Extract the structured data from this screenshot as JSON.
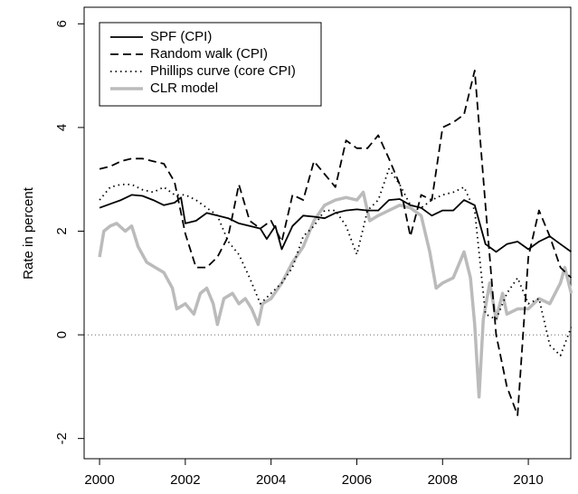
{
  "chart_data": {
    "type": "line",
    "ylabel": "Rate in percent",
    "xlim": [
      1999.64,
      2010.99
    ],
    "ylim": [
      -2.39,
      6.32
    ],
    "xticks": [
      2000,
      2002,
      2004,
      2006,
      2008,
      2010
    ],
    "yticks": [
      -2,
      0,
      2,
      4,
      6
    ],
    "reference_line": 0,
    "legend": "top-left",
    "series": [
      {
        "name": "SPF (CPI)",
        "color": "#000000",
        "style": "solid",
        "linewidth": 1.8,
        "x": [
          2000.0,
          2000.5,
          2000.75,
          2001.0,
          2001.25,
          2001.5,
          2001.75,
          2001.9,
          2002.0,
          2002.25,
          2002.5,
          2002.75,
          2003.0,
          2003.25,
          2003.5,
          2003.75,
          2003.9,
          2004.1,
          2004.25,
          2004.5,
          2004.75,
          2005.0,
          2005.25,
          2005.5,
          2005.75,
          2006.0,
          2006.25,
          2006.5,
          2006.75,
          2007.0,
          2007.25,
          2007.5,
          2007.75,
          2008.0,
          2008.25,
          2008.5,
          2008.75,
          2009.0,
          2009.25,
          2009.5,
          2009.75,
          2010.0,
          2010.25,
          2010.5,
          2010.75,
          2011.0
        ],
        "values": [
          2.45,
          2.6,
          2.7,
          2.68,
          2.6,
          2.5,
          2.55,
          2.65,
          2.15,
          2.2,
          2.35,
          2.3,
          2.25,
          2.15,
          2.1,
          2.05,
          1.85,
          2.1,
          1.65,
          2.1,
          2.3,
          2.28,
          2.25,
          2.35,
          2.4,
          2.42,
          2.4,
          2.4,
          2.6,
          2.62,
          2.5,
          2.45,
          2.3,
          2.4,
          2.4,
          2.6,
          2.5,
          1.75,
          1.6,
          1.75,
          1.8,
          1.65,
          1.8,
          1.9,
          1.75,
          1.6
        ]
      },
      {
        "name": "Random walk (CPI)",
        "color": "#000000",
        "style": "dashed",
        "linewidth": 1.8,
        "x": [
          2000.0,
          2000.25,
          2000.5,
          2000.75,
          2001.0,
          2001.25,
          2001.5,
          2001.75,
          2002.0,
          2002.25,
          2002.5,
          2002.75,
          2003.0,
          2003.25,
          2003.5,
          2003.75,
          2004.0,
          2004.25,
          2004.5,
          2004.75,
          2005.0,
          2005.25,
          2005.5,
          2005.75,
          2006.0,
          2006.25,
          2006.5,
          2006.75,
          2007.0,
          2007.25,
          2007.5,
          2007.75,
          2008.0,
          2008.25,
          2008.5,
          2008.75,
          2009.0,
          2009.25,
          2009.5,
          2009.75,
          2010.0,
          2010.25,
          2010.5,
          2010.75,
          2011.0
        ],
        "values": [
          3.2,
          3.25,
          3.35,
          3.4,
          3.4,
          3.35,
          3.3,
          2.95,
          1.95,
          1.3,
          1.3,
          1.5,
          1.9,
          2.9,
          2.2,
          2.05,
          2.2,
          1.8,
          2.7,
          2.6,
          3.35,
          3.1,
          2.85,
          3.75,
          3.6,
          3.6,
          3.85,
          3.4,
          2.9,
          1.9,
          2.7,
          2.6,
          4.0,
          4.1,
          4.25,
          5.1,
          2.5,
          0.0,
          -1.0,
          -1.55,
          1.5,
          2.4,
          1.9,
          1.3,
          1.1
        ]
      },
      {
        "name": "Phillips curve (core CPI)",
        "color": "#000000",
        "style": "dotted",
        "linewidth": 1.8,
        "x": [
          2000.0,
          2000.25,
          2000.5,
          2000.75,
          2001.0,
          2001.25,
          2001.5,
          2001.75,
          2002.0,
          2002.25,
          2002.5,
          2002.75,
          2003.0,
          2003.25,
          2003.5,
          2003.75,
          2004.0,
          2004.25,
          2004.5,
          2004.75,
          2005.0,
          2005.25,
          2005.5,
          2005.75,
          2006.0,
          2006.25,
          2006.5,
          2006.75,
          2007.0,
          2007.25,
          2007.5,
          2007.75,
          2008.0,
          2008.25,
          2008.5,
          2008.75,
          2009.0,
          2009.25,
          2009.5,
          2009.75,
          2010.0,
          2010.25,
          2010.5,
          2010.75,
          2011.0
        ],
        "values": [
          2.6,
          2.85,
          2.9,
          2.9,
          2.8,
          2.75,
          2.85,
          2.7,
          2.7,
          2.6,
          2.45,
          2.3,
          1.8,
          1.55,
          1.1,
          0.6,
          0.8,
          1.0,
          1.3,
          1.9,
          2.1,
          2.4,
          2.4,
          2.1,
          1.55,
          2.4,
          2.6,
          3.2,
          2.9,
          2.5,
          2.45,
          2.6,
          2.7,
          2.75,
          2.85,
          2.4,
          0.4,
          0.3,
          0.8,
          1.1,
          0.6,
          0.7,
          -0.2,
          -0.4,
          0.15
        ]
      },
      {
        "name": "CLR model",
        "color": "#bbbbbb",
        "style": "solid",
        "linewidth": 3.5,
        "x": [
          2000.0,
          2000.1,
          2000.25,
          2000.4,
          2000.6,
          2000.75,
          2000.9,
          2001.1,
          2001.3,
          2001.5,
          2001.7,
          2001.8,
          2002.0,
          2002.2,
          2002.35,
          2002.5,
          2002.65,
          2002.75,
          2002.9,
          2003.1,
          2003.25,
          2003.4,
          2003.55,
          2003.7,
          2003.8,
          2004.0,
          2004.25,
          2004.5,
          2004.75,
          2005.0,
          2005.25,
          2005.5,
          2005.75,
          2006.0,
          2006.15,
          2006.3,
          2006.5,
          2006.75,
          2007.0,
          2007.25,
          2007.5,
          2007.7,
          2007.85,
          2008.0,
          2008.25,
          2008.5,
          2008.65,
          2008.75,
          2008.85,
          2008.95,
          2009.1,
          2009.25,
          2009.4,
          2009.5,
          2009.75,
          2010.0,
          2010.25,
          2010.5,
          2010.75,
          2010.85,
          2011.0
        ],
        "values": [
          1.5,
          2.0,
          2.1,
          2.15,
          2.0,
          2.1,
          1.7,
          1.4,
          1.3,
          1.2,
          0.9,
          0.5,
          0.6,
          0.4,
          0.8,
          0.9,
          0.6,
          0.2,
          0.7,
          0.8,
          0.6,
          0.7,
          0.5,
          0.2,
          0.6,
          0.7,
          1.0,
          1.4,
          1.7,
          2.2,
          2.5,
          2.6,
          2.65,
          2.6,
          2.75,
          2.2,
          2.3,
          2.4,
          2.5,
          2.45,
          2.3,
          1.6,
          0.9,
          1.0,
          1.1,
          1.6,
          1.1,
          0.2,
          -1.2,
          0.3,
          1.0,
          0.3,
          0.8,
          0.4,
          0.5,
          0.5,
          0.7,
          0.6,
          1.0,
          1.3,
          0.8
        ]
      }
    ]
  }
}
